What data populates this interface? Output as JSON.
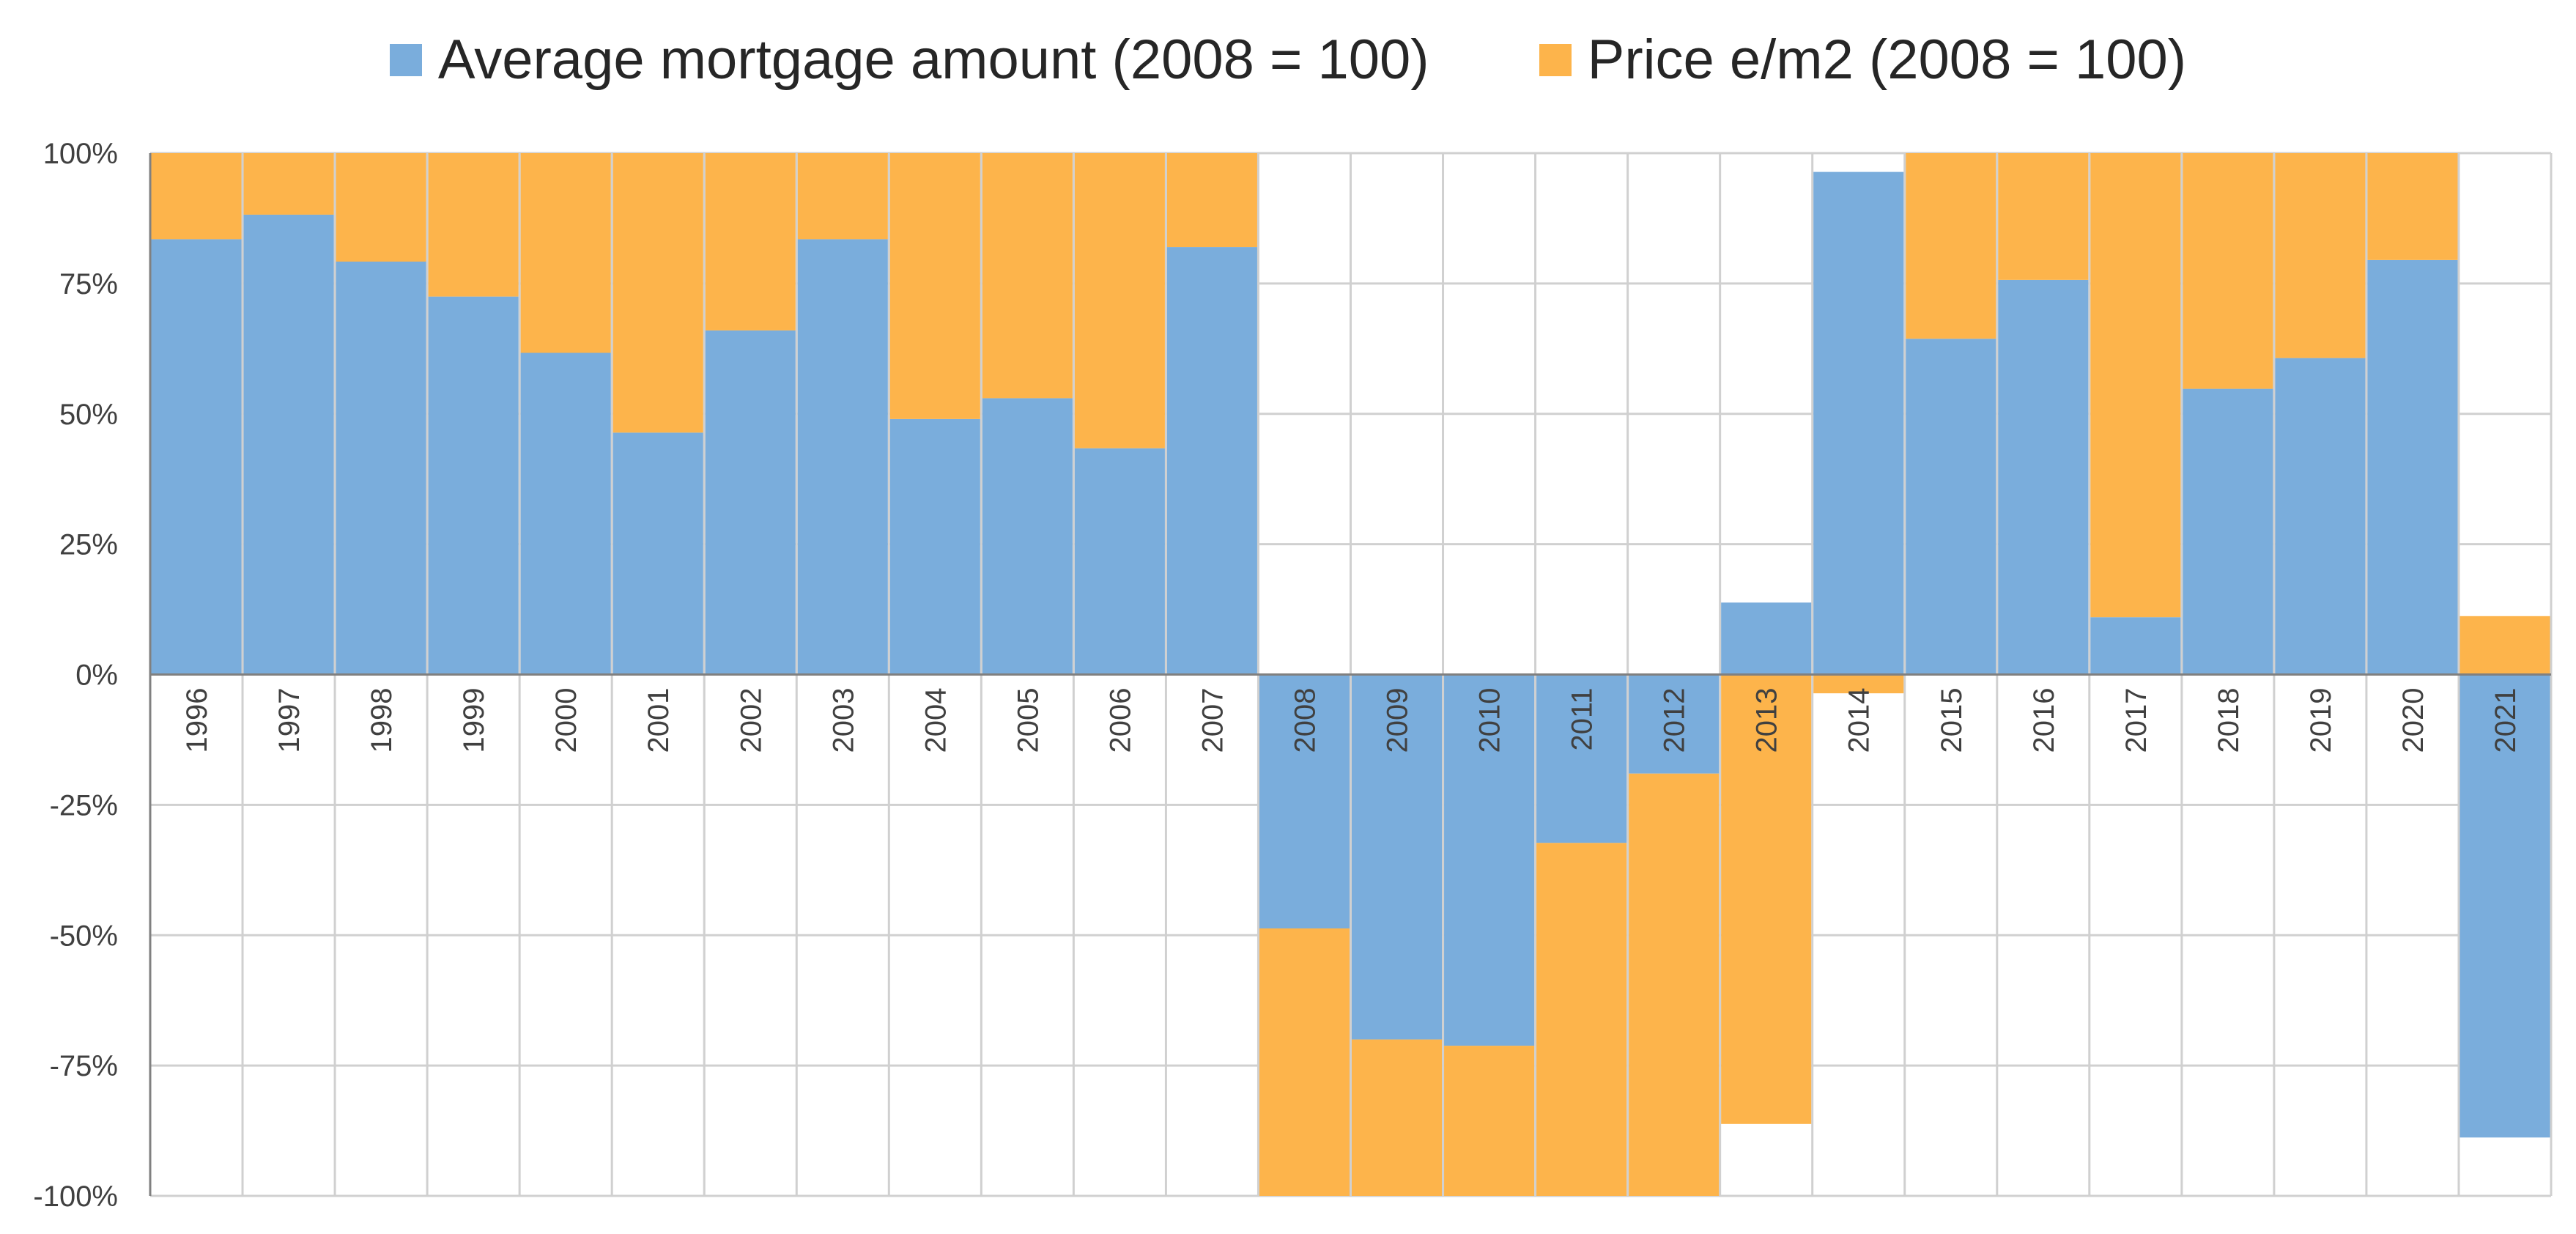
{
  "chart_data": {
    "type": "bar",
    "stacked": "percent",
    "title": "",
    "xlabel": "",
    "ylabel": "",
    "ylim": [
      -1.0,
      1.0
    ],
    "yticks": [
      "-100%",
      "-75%",
      "-50%",
      "-25%",
      "0%",
      "25%",
      "50%",
      "75%",
      "100%"
    ],
    "grid": true,
    "legend_position": "top",
    "categories": [
      "1996",
      "1997",
      "1998",
      "1999",
      "2000",
      "2001",
      "2002",
      "2003",
      "2004",
      "2005",
      "2006",
      "2007",
      "2008",
      "2009",
      "2010",
      "2011",
      "2012",
      "2013",
      "2014",
      "2015",
      "2016",
      "2017",
      "2018",
      "2019",
      "2020",
      "2021"
    ],
    "series": [
      {
        "name": "Average mortgage amount (2008 = 100)",
        "color": "#7aaddc",
        "values": [
          0.835,
          0.882,
          0.792,
          0.725,
          0.617,
          0.464,
          0.66,
          0.835,
          0.49,
          0.53,
          0.434,
          0.82,
          -0.487,
          -0.7,
          -0.712,
          -0.323,
          -0.19,
          0.138,
          0.964,
          0.644,
          0.757,
          0.11,
          0.548,
          0.607,
          0.795,
          -0.888
        ]
      },
      {
        "name": "Price e/m2 (2008 = 100)",
        "color": "#fdb44b",
        "values": [
          0.165,
          0.118,
          0.208,
          0.275,
          0.383,
          0.536,
          0.34,
          0.165,
          0.51,
          0.47,
          0.566,
          0.18,
          -0.513,
          -0.3,
          -0.288,
          -0.677,
          -0.81,
          -0.862,
          -0.036,
          0.356,
          0.243,
          0.89,
          0.452,
          0.393,
          0.205,
          0.112
        ]
      }
    ]
  }
}
